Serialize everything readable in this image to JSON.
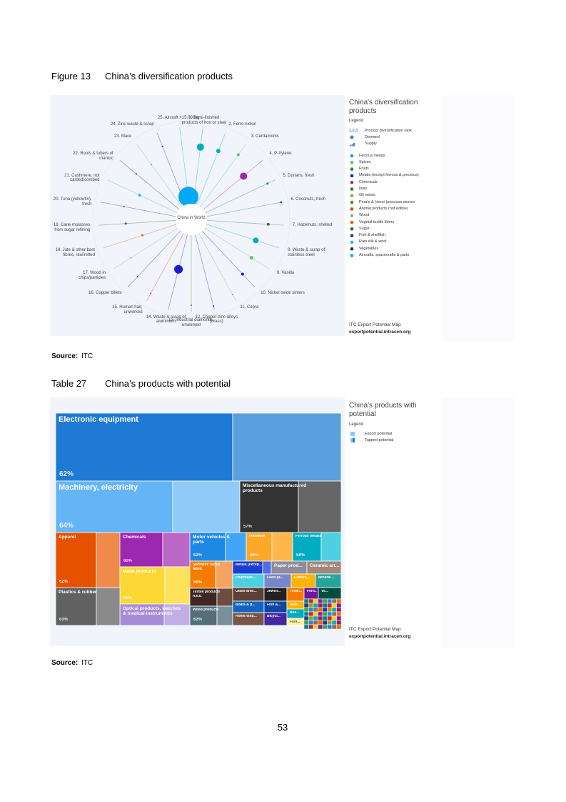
{
  "figure": {
    "label": "Figure 13",
    "title": "China’s diversification products"
  },
  "chart1": {
    "title": "China's diversification\nproducts",
    "legend_title": "Legend",
    "rank_icon": "1,2,3",
    "rank_label": "Product diversification rank",
    "demand_label": "Demand",
    "supply_label": "Supply",
    "categories": [
      {
        "label": "Ferrous metals",
        "color": "#00acc1"
      },
      {
        "label": "Spices",
        "color": "#66bb6a"
      },
      {
        "label": "Fruits",
        "color": "#1b8f3a"
      },
      {
        "label": "Metals (except ferrous & precious)",
        "color": "#1a1adb"
      },
      {
        "label": "Chemicals",
        "color": "#9c27b0"
      },
      {
        "label": "Nuts",
        "color": "#2e7d32"
      },
      {
        "label": "Oil seeds",
        "color": "#7cb342"
      },
      {
        "label": "Pearls & (semi-)precious stones",
        "color": "#558b2f"
      },
      {
        "label": "Animal products (not edible)",
        "color": "#e53935"
      },
      {
        "label": "Wood",
        "color": "#90a4ae"
      },
      {
        "label": "Vegetal textile fibers",
        "color": "#f4511e"
      },
      {
        "label": "Sugar",
        "color": "#33691e"
      },
      {
        "label": "Fish & shellfish",
        "color": "#283593"
      },
      {
        "label": "Raw silk & wool",
        "color": "#29b6f6"
      },
      {
        "label": "Vegetables",
        "color": "#1b3a2a"
      },
      {
        "label": "Aircrafts, spacecrafts & parts",
        "color": "#03a9f4"
      }
    ],
    "center_label": "China in World",
    "products": [
      "1. Semi-finished\nproducts of iron or steel",
      "2. Ferro-nickel",
      "3. Cardamoms",
      "4. P-Xylene",
      "5. Durians, fresh",
      "6. Coconuts, fresh",
      "7. Hazelnuts, shelled",
      "8. Waste & scrap of\nstainless steel",
      "9. Vanilla",
      "10. Nickel oxide sinters",
      "11. Copra",
      "12. Copper-zinc alloys\n(brass)",
      "13. Industrial diamonds,\nunworked",
      "14. Waste & scrap of\naluminium",
      "15. Human hair,\nunworked",
      "16. Copper billets",
      "17. Wood in\nchips/particles",
      "18. Jute & other bast\nfibres, raw/retted",
      "19. Cane molasses\nfrom sugar refining",
      "20. Tuna (yellowfin),\nfresh",
      "21. Cashmere, not\ncarded/combed",
      "22. Roots & tubers of\nmanioc",
      "23. Mace",
      "24. Zinc waste & scrap",
      "25. Aircraft >15,000kg"
    ],
    "credit": "ITC Export Potential Map",
    "url": "exportpotential.intracen.org"
  },
  "source1": {
    "label": "Source:",
    "text": "ITC"
  },
  "table": {
    "label": "Table 27",
    "title": "China’s products with potential"
  },
  "chart2": {
    "title": "China's products with\npotential",
    "legend_title": "Legend",
    "legend": [
      "Export potential",
      "Tapped potential"
    ],
    "tiles": [
      {
        "label": "Electronic equipment",
        "share": "62%"
      },
      {
        "label": "Machinery, electricity",
        "share": "64%"
      },
      {
        "label": "Miscellaneous manufactured\nproducts",
        "share": "57%"
      },
      {
        "label": "Apparel",
        "share": "62%"
      },
      {
        "label": "Chemicals",
        "share": "60%"
      },
      {
        "label": "Metal products",
        "share": "65%"
      },
      {
        "label": "Optical products, watches\n& medical instruments"
      },
      {
        "label": "Plastics & rubber",
        "share": "63%"
      },
      {
        "label": "Motor vehicles &\nparts",
        "share": "62%"
      },
      {
        "label": "Footwear",
        "share": "66%"
      },
      {
        "label": "Ferrous metals",
        "share": "58%"
      },
      {
        "label": "Synthetic textile\nfabric",
        "share": "59%"
      },
      {
        "label": "Textile products\nn.e.s."
      },
      {
        "label": "Wood products",
        "share": "62%"
      },
      {
        "label": "Metals (excep..."
      },
      {
        "label": "Paper prod..."
      },
      {
        "label": "Ceramic art..."
      },
      {
        "label": "Pharmace..."
      },
      {
        "label": "Food pr..."
      },
      {
        "label": "Cotton(..."
      },
      {
        "label": "Mineral ..."
      },
      {
        "label": "Glass artic..."
      },
      {
        "label": "Jewell..."
      },
      {
        "label": "Textil..."
      },
      {
        "label": "Ferti..."
      },
      {
        "label": "Ve..."
      },
      {
        "label": "Boats & p..."
      },
      {
        "label": "Fish &..."
      },
      {
        "label": "Home texti..."
      },
      {
        "label": "Bicycl..."
      },
      {
        "label": "Stee..."
      },
      {
        "label": "Bea..."
      },
      {
        "label": "Fish..."
      }
    ],
    "credit": "ITC Export Potential Map",
    "url": "exportpotential.intracen.org"
  },
  "source2": {
    "label": "Source:",
    "text": "ITC"
  },
  "page_number": "53"
}
